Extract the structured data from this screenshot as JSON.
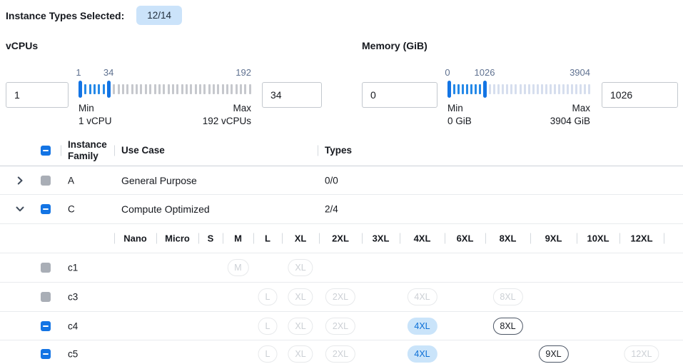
{
  "colors": {
    "accent": "#1374e4",
    "badge_bg": "#cbe3fa",
    "pill_selected_bg": "#cae4fa",
    "pill_selected_text": "#0c6fd6",
    "tick_in": "#2589e8",
    "tick_out_vcpus": "#c6c8cd",
    "tick_out_memory": "#d6deee",
    "checkbox_disabled": "#a9aeb6"
  },
  "header": {
    "label": "Instance Types Selected:",
    "badge": "12/14"
  },
  "filters": {
    "vcpus": {
      "title": "vCPUs",
      "min_input": "1",
      "max_input": "34",
      "scale_labels": [
        {
          "text": "1",
          "pct": 0
        },
        {
          "text": "34",
          "pct": 17.4
        },
        {
          "text": "192",
          "pct": 100
        }
      ],
      "ticks_in": 5,
      "ticks_out": 31,
      "out_color": "tick_out_vcpus",
      "min_caption": [
        "Min",
        "1 vCPU"
      ],
      "max_caption": [
        "Max",
        "192 vCPUs"
      ]
    },
    "memory": {
      "title": "Memory (GiB)",
      "min_input": "0",
      "max_input": "1026",
      "scale_labels": [
        {
          "text": "0",
          "pct": 0
        },
        {
          "text": "1026",
          "pct": 26
        },
        {
          "text": "3904",
          "pct": 100
        }
      ],
      "ticks_in": 7,
      "ticks_out": 24,
      "out_color": "tick_out_memory",
      "min_caption": [
        "Min",
        "0 GiB"
      ],
      "max_caption": [
        "Max",
        "3904 GiB"
      ]
    }
  },
  "table": {
    "header": {
      "instance_family": "Instance Family",
      "use_case": "Use Case",
      "types": "Types"
    },
    "sizes": [
      "Nano",
      "Micro",
      "S",
      "M",
      "L",
      "XL",
      "2XL",
      "3XL",
      "4XL",
      "6XL",
      "8XL",
      "9XL",
      "10XL",
      "12XL"
    ],
    "rows": [
      {
        "kind": "family",
        "expand": "collapsed",
        "checkbox": "disabled",
        "family": "A",
        "use_case": "General Purpose",
        "types": "0/0"
      },
      {
        "kind": "family",
        "expand": "expanded",
        "checkbox": "indeterminate",
        "family": "C",
        "use_case": "Compute Optimized",
        "types": "2/4"
      },
      {
        "kind": "sizes_header"
      },
      {
        "kind": "type",
        "checkbox": "disabled",
        "name": "c1",
        "pills": [
          {
            "size": "M",
            "state": "disabled"
          },
          {
            "size": "XL",
            "state": "disabled"
          }
        ]
      },
      {
        "kind": "type",
        "checkbox": "disabled",
        "name": "c3",
        "pills": [
          {
            "size": "L",
            "state": "disabled"
          },
          {
            "size": "XL",
            "state": "disabled"
          },
          {
            "size": "2XL",
            "state": "disabled"
          },
          {
            "size": "4XL",
            "state": "disabled"
          },
          {
            "size": "8XL",
            "state": "disabled"
          }
        ]
      },
      {
        "kind": "type",
        "checkbox": "indeterminate",
        "name": "c4",
        "pills": [
          {
            "size": "L",
            "state": "disabled"
          },
          {
            "size": "XL",
            "state": "disabled"
          },
          {
            "size": "2XL",
            "state": "disabled"
          },
          {
            "size": "4XL",
            "state": "selected"
          },
          {
            "size": "8XL",
            "state": "enabled"
          }
        ]
      },
      {
        "kind": "type",
        "checkbox": "indeterminate",
        "name": "c5",
        "pills": [
          {
            "size": "L",
            "state": "disabled"
          },
          {
            "size": "XL",
            "state": "disabled"
          },
          {
            "size": "2XL",
            "state": "disabled"
          },
          {
            "size": "4XL",
            "state": "selected"
          },
          {
            "size": "9XL",
            "state": "enabled"
          },
          {
            "size": "12XL",
            "state": "disabled"
          }
        ]
      }
    ]
  }
}
